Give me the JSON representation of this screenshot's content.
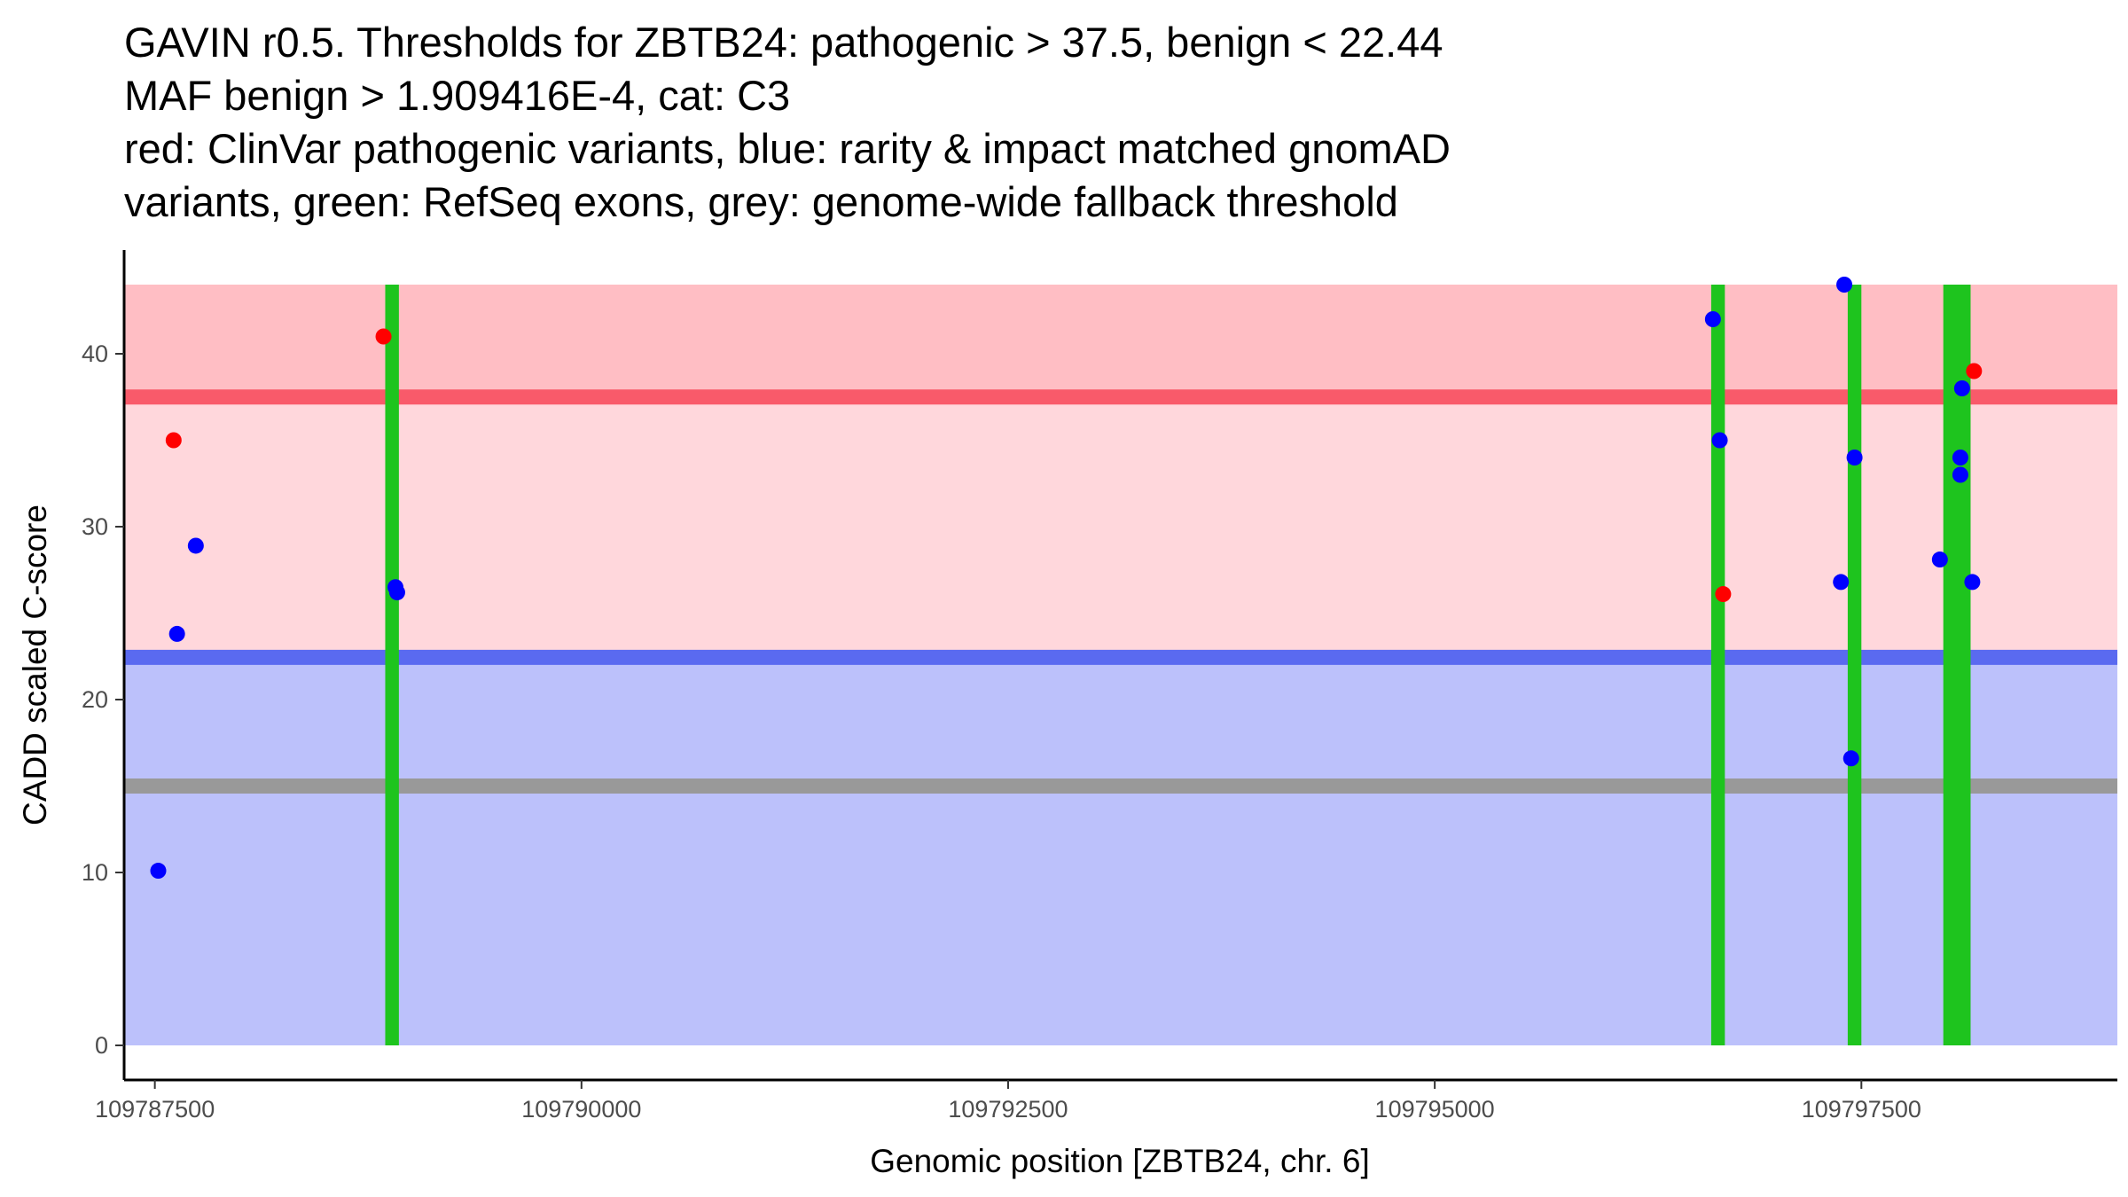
{
  "chart_data": {
    "type": "scatter",
    "title_lines": [
      "GAVIN r0.5. Thresholds for ZBTB24: pathogenic > 37.5, benign < 22.44",
      "MAF benign > 1.909416E-4, cat: C3",
      "red: ClinVar pathogenic variants, blue: rarity & impact matched gnomAD",
      "variants, green: RefSeq exons, grey: genome-wide fallback threshold"
    ],
    "xlabel": "Genomic position [ZBTB24, chr. 6]",
    "ylabel": "CADD scaled C-score",
    "xlim": [
      109787320,
      109799000
    ],
    "ylim": [
      -2,
      46
    ],
    "x_ticks": [
      109787500,
      109790000,
      109792500,
      109795000,
      109797500
    ],
    "x_tick_labels": [
      "109787500",
      "109790000",
      "109792500",
      "109795000",
      "109797500"
    ],
    "y_ticks": [
      0,
      10,
      20,
      30,
      40
    ],
    "y_tick_labels": [
      "0",
      "10",
      "20",
      "30",
      "40"
    ],
    "grid": false,
    "bands": [
      {
        "name": "pathogenic zone",
        "ymin": 37.5,
        "ymax": 44,
        "color": "#ffbec4"
      },
      {
        "name": "intermediate zone",
        "ymin": 22.44,
        "ymax": 37.5,
        "color": "#ffd7dc"
      },
      {
        "name": "benign zone",
        "ymin": 0,
        "ymax": 22.44,
        "color": "#bcc1fb"
      }
    ],
    "threshold_lines": [
      {
        "name": "pathogenic threshold",
        "y": 37.5,
        "color": "#f95a6a"
      },
      {
        "name": "benign threshold",
        "y": 22.44,
        "color": "#5a6af0"
      },
      {
        "name": "genome-wide fallback threshold",
        "y": 15,
        "color": "#999999"
      }
    ],
    "exons": [
      {
        "xmin": 109788850,
        "xmax": 109788930
      },
      {
        "xmin": 109796620,
        "xmax": 109796700
      },
      {
        "xmin": 109797420,
        "xmax": 109797500
      },
      {
        "xmin": 109797980,
        "xmax": 109798140
      }
    ],
    "exon_color": "#1ec41e",
    "series": [
      {
        "color": "#ff0000",
        "points": [
          {
            "x": 109787610,
            "y": 35
          },
          {
            "x": 109788840,
            "y": 41
          },
          {
            "x": 109796690,
            "y": 26.1
          },
          {
            "x": 109798160,
            "y": 39
          }
        ]
      },
      {
        "color": "#0000ff",
        "points": [
          {
            "x": 109787520,
            "y": 10.1
          },
          {
            "x": 109787630,
            "y": 23.8
          },
          {
            "x": 109787740,
            "y": 28.9
          },
          {
            "x": 109788910,
            "y": 26.5
          },
          {
            "x": 109788920,
            "y": 26.2
          },
          {
            "x": 109796630,
            "y": 42
          },
          {
            "x": 109796670,
            "y": 35
          },
          {
            "x": 109797380,
            "y": 26.8
          },
          {
            "x": 109797400,
            "y": 44
          },
          {
            "x": 109797440,
            "y": 16.6
          },
          {
            "x": 109797460,
            "y": 34
          },
          {
            "x": 109797960,
            "y": 28.1
          },
          {
            "x": 109798080,
            "y": 34
          },
          {
            "x": 109798080,
            "y": 33
          },
          {
            "x": 109798090,
            "y": 38
          },
          {
            "x": 109798150,
            "y": 26.8
          }
        ]
      }
    ]
  }
}
